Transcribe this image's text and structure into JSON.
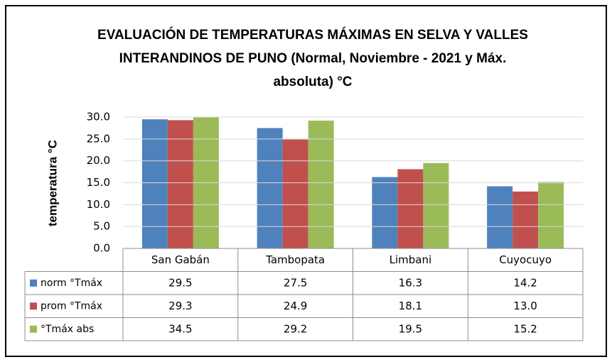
{
  "chart_data": {
    "type": "bar",
    "title": [
      "EVALUACIÓN DE TEMPERATURAS MÁXIMAS EN SELVA Y VALLES",
      "INTERANDINOS DE PUNO (Normal, Noviembre - 2021 y Máx.",
      "absoluta) °C"
    ],
    "y_label": "temperatura °C",
    "categories": [
      "San Gabán",
      "Tambopata",
      "Limbani",
      "Cuyocuyo"
    ],
    "series": [
      {
        "name": "norm °Tmáx",
        "color": "#4f81bd",
        "values": [
          29.5,
          27.5,
          16.3,
          14.2
        ],
        "value_labels": [
          "29.5",
          "27.5",
          "16.3",
          "14.2"
        ]
      },
      {
        "name": "prom °Tmáx",
        "color": "#c0504d",
        "values": [
          29.3,
          24.9,
          18.1,
          13.0
        ],
        "value_labels": [
          "29.3",
          "24.9",
          "18.1",
          "13.0"
        ]
      },
      {
        "name": "°Tmáx abs",
        "color": "#9bbb59",
        "values": [
          34.5,
          29.2,
          19.5,
          15.2
        ],
        "value_labels": [
          "34.5",
          "29.2",
          "19.5",
          "15.2"
        ]
      }
    ],
    "ylim": [
      0,
      30
    ],
    "yticks": [
      {
        "value": 0,
        "label": "0.0"
      },
      {
        "value": 5,
        "label": "5.0"
      },
      {
        "value": 10,
        "label": "10.0"
      },
      {
        "value": 15,
        "label": "15.0"
      },
      {
        "value": 20,
        "label": "20.0"
      },
      {
        "value": 25,
        "label": "25.0"
      },
      {
        "value": 30,
        "label": "30.0"
      }
    ],
    "grid": true
  }
}
